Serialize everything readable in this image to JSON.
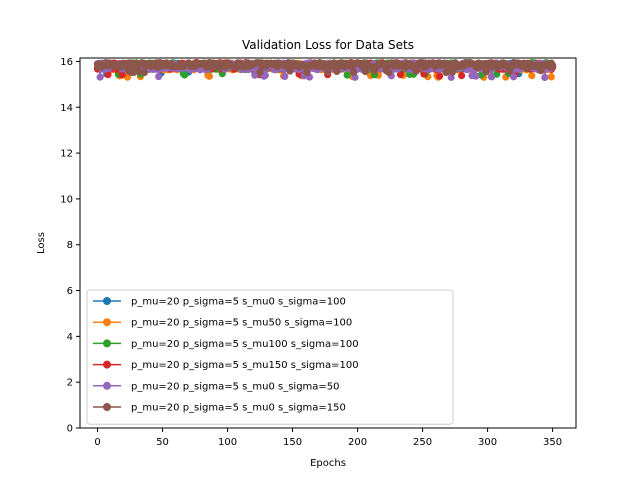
{
  "chart_data": {
    "type": "line",
    "title": "Validation Loss for Data Sets",
    "xlabel": "Epochs",
    "ylabel": "Loss",
    "xlim": [
      -13.5,
      368
    ],
    "ylim": [
      0,
      16.15
    ],
    "xticks": [
      0,
      50,
      100,
      150,
      200,
      250,
      300,
      350
    ],
    "yticks": [
      0,
      2,
      4,
      6,
      8,
      10,
      12,
      14,
      16
    ],
    "grid": false,
    "legend_position": "lower-left",
    "series": [
      {
        "name": "p_mu=20 p_sigma=5 s_mu0 s_sigma=100",
        "color": "#1f77b4",
        "epochs": 351,
        "base": 15.8,
        "spread": 0.25,
        "min": 15.45
      },
      {
        "name": "p_mu=20 p_sigma=5 s_mu50 s_sigma=100",
        "color": "#ff7f0e",
        "epochs": 351,
        "base": 15.78,
        "spread": 0.3,
        "min": 15.3
      },
      {
        "name": "p_mu=20 p_sigma=5 s_mu100 s_sigma=100",
        "color": "#2ca02c",
        "epochs": 351,
        "base": 15.8,
        "spread": 0.3,
        "min": 15.4
      },
      {
        "name": "p_mu=20 p_sigma=5 s_mu150 s_sigma=100",
        "color": "#d62728",
        "epochs": 351,
        "base": 15.8,
        "spread": 0.3,
        "min": 15.35
      },
      {
        "name": "p_mu=20 p_sigma=5 s_mu0 s_sigma=50",
        "color": "#9467bd",
        "epochs": 351,
        "base": 15.78,
        "spread": 0.3,
        "min": 15.3
      },
      {
        "name": "p_mu=20 p_sigma=5 s_mu0 s_sigma=150",
        "color": "#8c564b",
        "epochs": 351,
        "base": 15.85,
        "spread": 0.2,
        "min": 15.5
      }
    ]
  }
}
